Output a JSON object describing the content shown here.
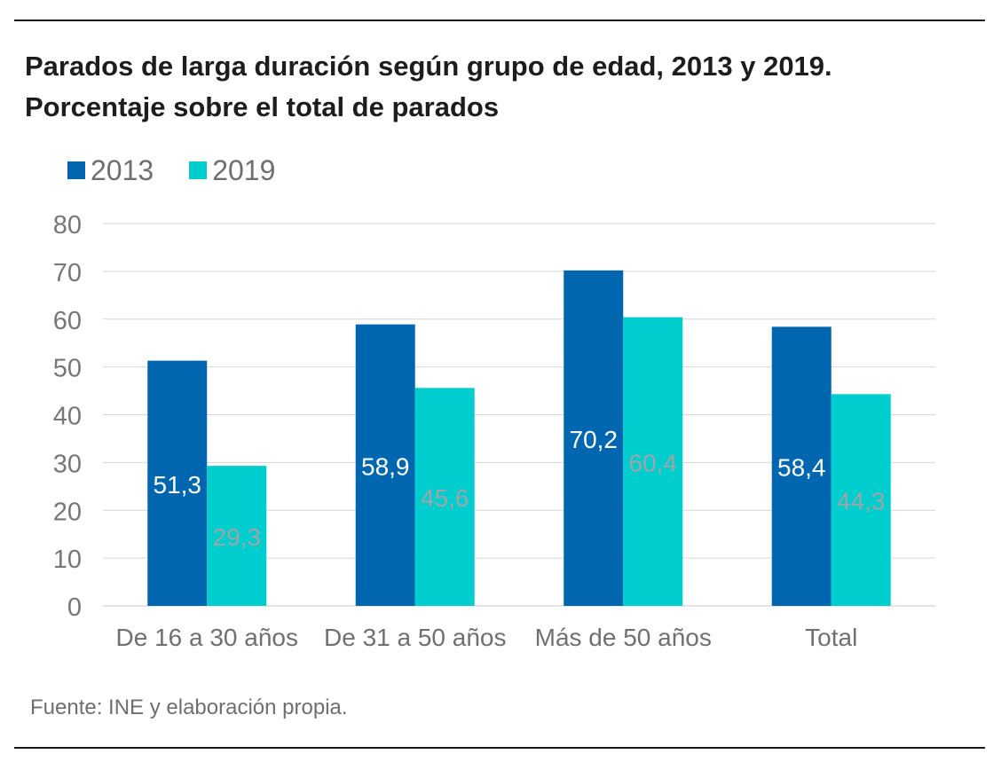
{
  "title_line1": "Parados de larga duración según grupo de edad, 2013 y 2019.",
  "title_line2": "Porcentaje sobre el total de parados",
  "source": "Fuente: INE y elaboración propia.",
  "chart_data": {
    "type": "bar",
    "title": "Parados de larga duración según grupo de edad, 2013 y 2019. Porcentaje sobre el total de parados",
    "xlabel": "",
    "ylabel": "",
    "ylim": [
      0,
      80
    ],
    "yticks": [
      0,
      10,
      20,
      30,
      40,
      50,
      60,
      70,
      80
    ],
    "grid": true,
    "legend_position": "top-left",
    "categories": [
      "De 16 a 30 años",
      "De 31 a 50 años",
      "Más de 50 años",
      "Total"
    ],
    "series": [
      {
        "name": "2013",
        "color": "#0066b0",
        "label_color": "#ffffff",
        "values": [
          51.3,
          58.9,
          70.2,
          58.4
        ],
        "labels": [
          "51,3",
          "58,9",
          "70,2",
          "58,4"
        ]
      },
      {
        "name": "2019",
        "color": "#00cdcd",
        "label_color": "#a0a4a8",
        "values": [
          29.3,
          45.6,
          60.4,
          44.3
        ],
        "labels": [
          "29,3",
          "45,6",
          "60,4",
          "44,3"
        ]
      }
    ]
  }
}
